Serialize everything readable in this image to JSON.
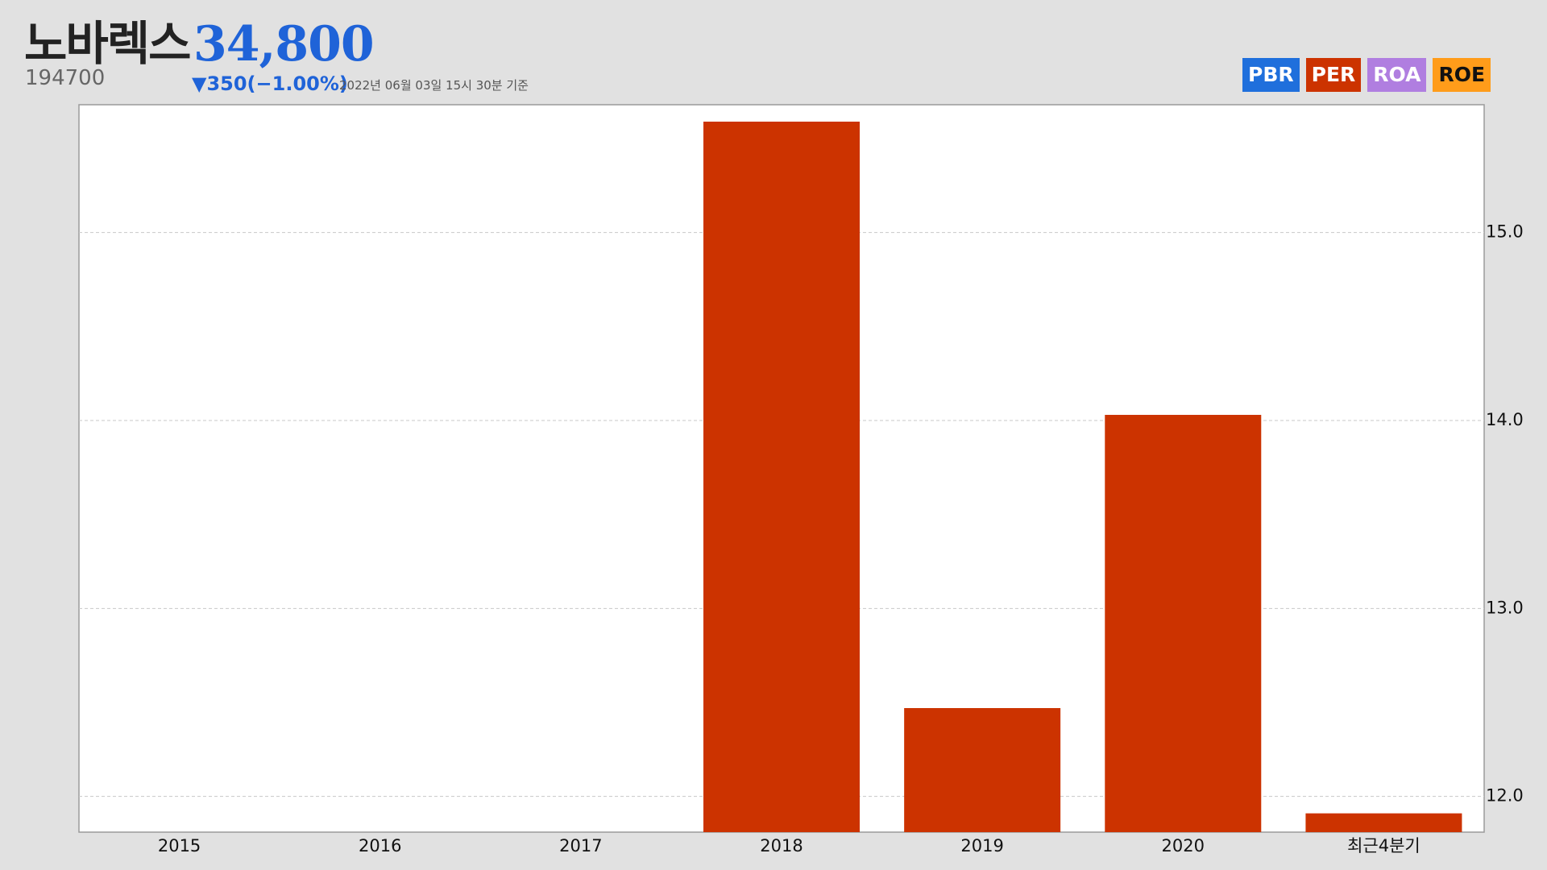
{
  "header": {
    "stock_name": "노바렉스",
    "stock_code": "194700",
    "price": "34,800",
    "change": "▼350(−1.00%)",
    "timestamp": "2022년 06월 03일 15시 30분 기준"
  },
  "metric_tabs": [
    {
      "label": "PBR",
      "bg": "#1f6fdc",
      "fg": "#ffffff",
      "icon": ""
    },
    {
      "label": "PER",
      "bg": "#cc3300",
      "fg": "#ffffff",
      "icon": ""
    },
    {
      "label": "ROA",
      "bg": "#b07ee0",
      "fg": "#ffffff",
      "icon": ""
    },
    {
      "label": "ROE",
      "bg": "#ff9c1a",
      "fg": "#111111",
      "icon": ""
    }
  ],
  "colors": {
    "accent": "#1f63d8",
    "bar": "#cc3300",
    "background": "#e1e1e1",
    "plot_background": "#ffffff"
  },
  "chart_data": {
    "type": "bar",
    "categories": [
      "2015",
      "2016",
      "2017",
      "2018",
      "2019",
      "2020",
      "최근4분기"
    ],
    "values": [
      null,
      null,
      null,
      15.59,
      12.47,
      14.03,
      11.91
    ],
    "ylim": [
      11.81,
      15.68
    ],
    "yticks": [
      12.0,
      13.0,
      14.0,
      15.0
    ],
    "ytick_labels": [
      "12.0",
      "13.0",
      "14.0",
      "15.0"
    ],
    "y_axis_position": "right",
    "grid": true,
    "title": "",
    "xlabel": "",
    "ylabel": ""
  }
}
